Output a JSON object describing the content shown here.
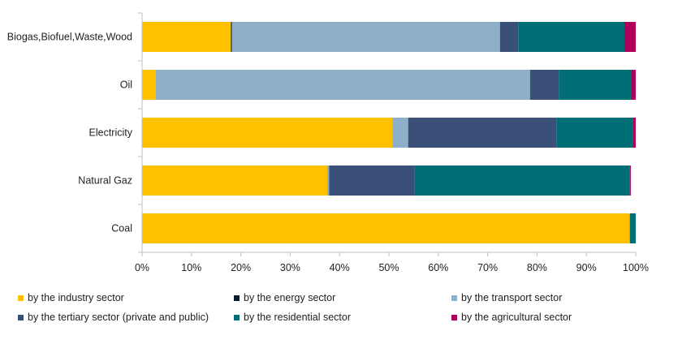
{
  "chart_data": {
    "type": "bar",
    "orientation": "horizontal",
    "stacked": "percent",
    "title": "",
    "xlabel": "",
    "ylabel": "",
    "xlim": [
      0,
      100
    ],
    "x_ticks": [
      "0%",
      "10%",
      "20%",
      "30%",
      "40%",
      "50%",
      "60%",
      "70%",
      "80%",
      "90%",
      "100%"
    ],
    "grid": false,
    "legend_position": "bottom",
    "categories": [
      "Biogas,Biofuel,Waste,Wood",
      "Oil",
      "Electricity",
      "Natural Gaz",
      "Coal"
    ],
    "series": [
      {
        "name": "by the industry sector",
        "color": "#FFC000",
        "values": [
          18.0,
          2.8,
          50.7,
          37.5,
          98.8
        ]
      },
      {
        "name": "by the energy sector",
        "color": "#0B1A2E",
        "values": [
          0.2,
          0.0,
          0.0,
          0.0,
          0.0
        ]
      },
      {
        "name": "by the transport sector",
        "color": "#8EAFC8",
        "values": [
          54.3,
          75.8,
          3.2,
          0.4,
          0.0
        ]
      },
      {
        "name": "by the tertiary sector (private and public)",
        "color": "#3A5079",
        "values": [
          3.7,
          5.8,
          30.1,
          17.3,
          0.0
        ]
      },
      {
        "name": "by the residential sector",
        "color": "#006E75",
        "values": [
          21.5,
          14.7,
          15.5,
          43.6,
          1.2
        ]
      },
      {
        "name": "by the agricultural sector",
        "color": "#B0005A",
        "values": [
          2.3,
          0.9,
          0.5,
          0.2,
          0.0
        ]
      }
    ]
  }
}
